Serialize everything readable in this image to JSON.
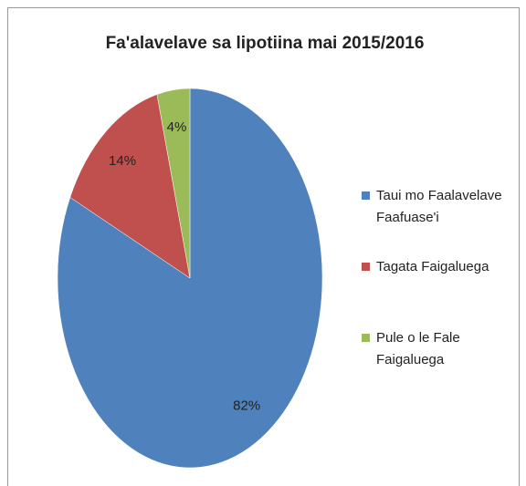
{
  "chart_data": {
    "type": "pie",
    "title": "Fa'alavelave sa lipotiina mai 2015/2016",
    "categories": [
      "Taui mo Faalavelave Faafuase'i",
      "Tagata Faigaluega",
      "Pule o le Fale Faigaluega"
    ],
    "values": [
      82,
      14,
      4
    ],
    "value_labels": [
      "82%",
      "14%",
      "4%"
    ],
    "colors": [
      "#4f81bd",
      "#c0504d",
      "#9bbb59"
    ],
    "legend": "right"
  }
}
